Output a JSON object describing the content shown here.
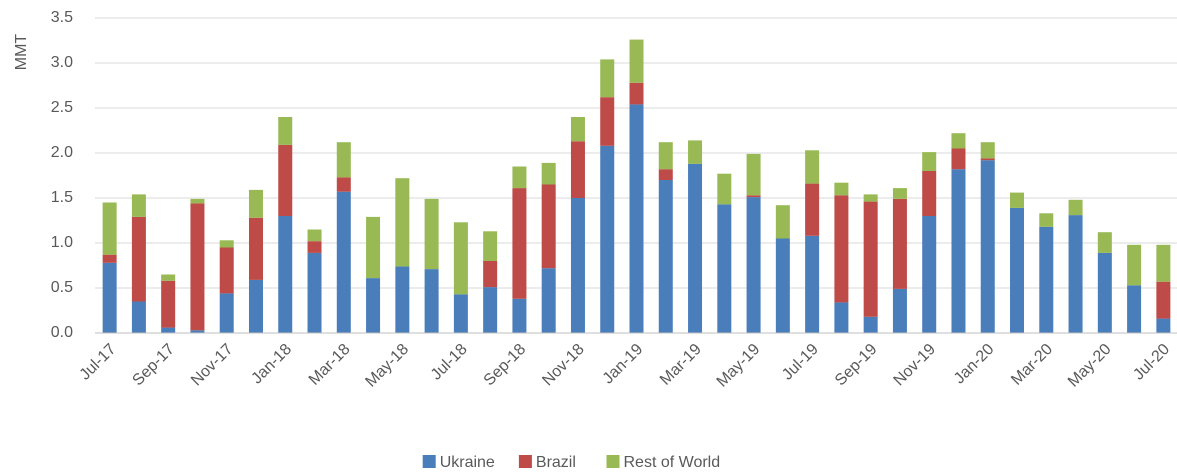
{
  "chart_data": {
    "type": "stacked_bar",
    "y_label": "MMT",
    "categories": [
      "Jul-17",
      null,
      "Sep-17",
      null,
      "Nov-17",
      null,
      "Jan-18",
      null,
      "Mar-18",
      null,
      "May-18",
      null,
      "Jul-18",
      null,
      "Sep-18",
      null,
      "Nov-18",
      null,
      "Jan-19",
      null,
      "Mar-19",
      null,
      "May-19",
      null,
      "Jul-19",
      null,
      "Sep-19",
      null,
      "Nov-19",
      null,
      "Jan-20",
      null,
      "Mar-20",
      null,
      "May-20",
      null,
      "Jul-20"
    ],
    "series": [
      {
        "name": "Ukraine",
        "color": "#4a7ebb",
        "values": [
          0.78,
          0.35,
          0.06,
          0.03,
          0.44,
          0.59,
          1.3,
          0.89,
          1.57,
          0.61,
          0.74,
          0.71,
          0.43,
          0.51,
          0.38,
          0.72,
          1.5,
          2.08,
          2.54,
          1.7,
          1.88,
          1.43,
          1.51,
          1.05,
          1.08,
          0.34,
          0.18,
          0.49,
          1.3,
          1.82,
          1.92,
          1.39,
          1.18,
          1.31,
          0.89,
          0.53,
          0.16
        ]
      },
      {
        "name": "Brazil",
        "color": "#be4b48",
        "values": [
          0.09,
          0.94,
          0.52,
          1.41,
          0.51,
          0.69,
          0.79,
          0.13,
          0.16,
          0,
          0,
          0,
          0,
          0.29,
          1.23,
          0.93,
          0.63,
          0.54,
          0.24,
          0.12,
          0,
          0,
          0.02,
          0,
          0.58,
          1.19,
          1.28,
          1.0,
          0.5,
          0.23,
          0.02,
          0,
          0,
          0,
          0,
          0,
          0.41
        ]
      },
      {
        "name": "Rest of World",
        "color": "#98b954",
        "values": [
          0.58,
          0.25,
          0.07,
          0.05,
          0.08,
          0.31,
          0.31,
          0.13,
          0.39,
          0.68,
          0.98,
          0.78,
          0.8,
          0.33,
          0.24,
          0.24,
          0.27,
          0.42,
          0.48,
          0.3,
          0.26,
          0.34,
          0.46,
          0.37,
          0.37,
          0.14,
          0.08,
          0.12,
          0.21,
          0.17,
          0.18,
          0.17,
          0.15,
          0.17,
          0.23,
          0.45,
          0.41
        ]
      }
    ],
    "ylim": [
      0,
      3.5
    ],
    "yticks": [
      {
        "value": 0,
        "label": "0.0"
      },
      {
        "value": 0.5,
        "label": "0.5"
      },
      {
        "value": 1,
        "label": "1.0"
      },
      {
        "value": 1.5,
        "label": "1.5"
      },
      {
        "value": 2,
        "label": "2.0"
      },
      {
        "value": 2.5,
        "label": "2.5"
      },
      {
        "value": 3,
        "label": "3.0"
      },
      {
        "value": 3.5,
        "label": "3.5"
      }
    ],
    "grid": true,
    "legend": "bottom"
  }
}
